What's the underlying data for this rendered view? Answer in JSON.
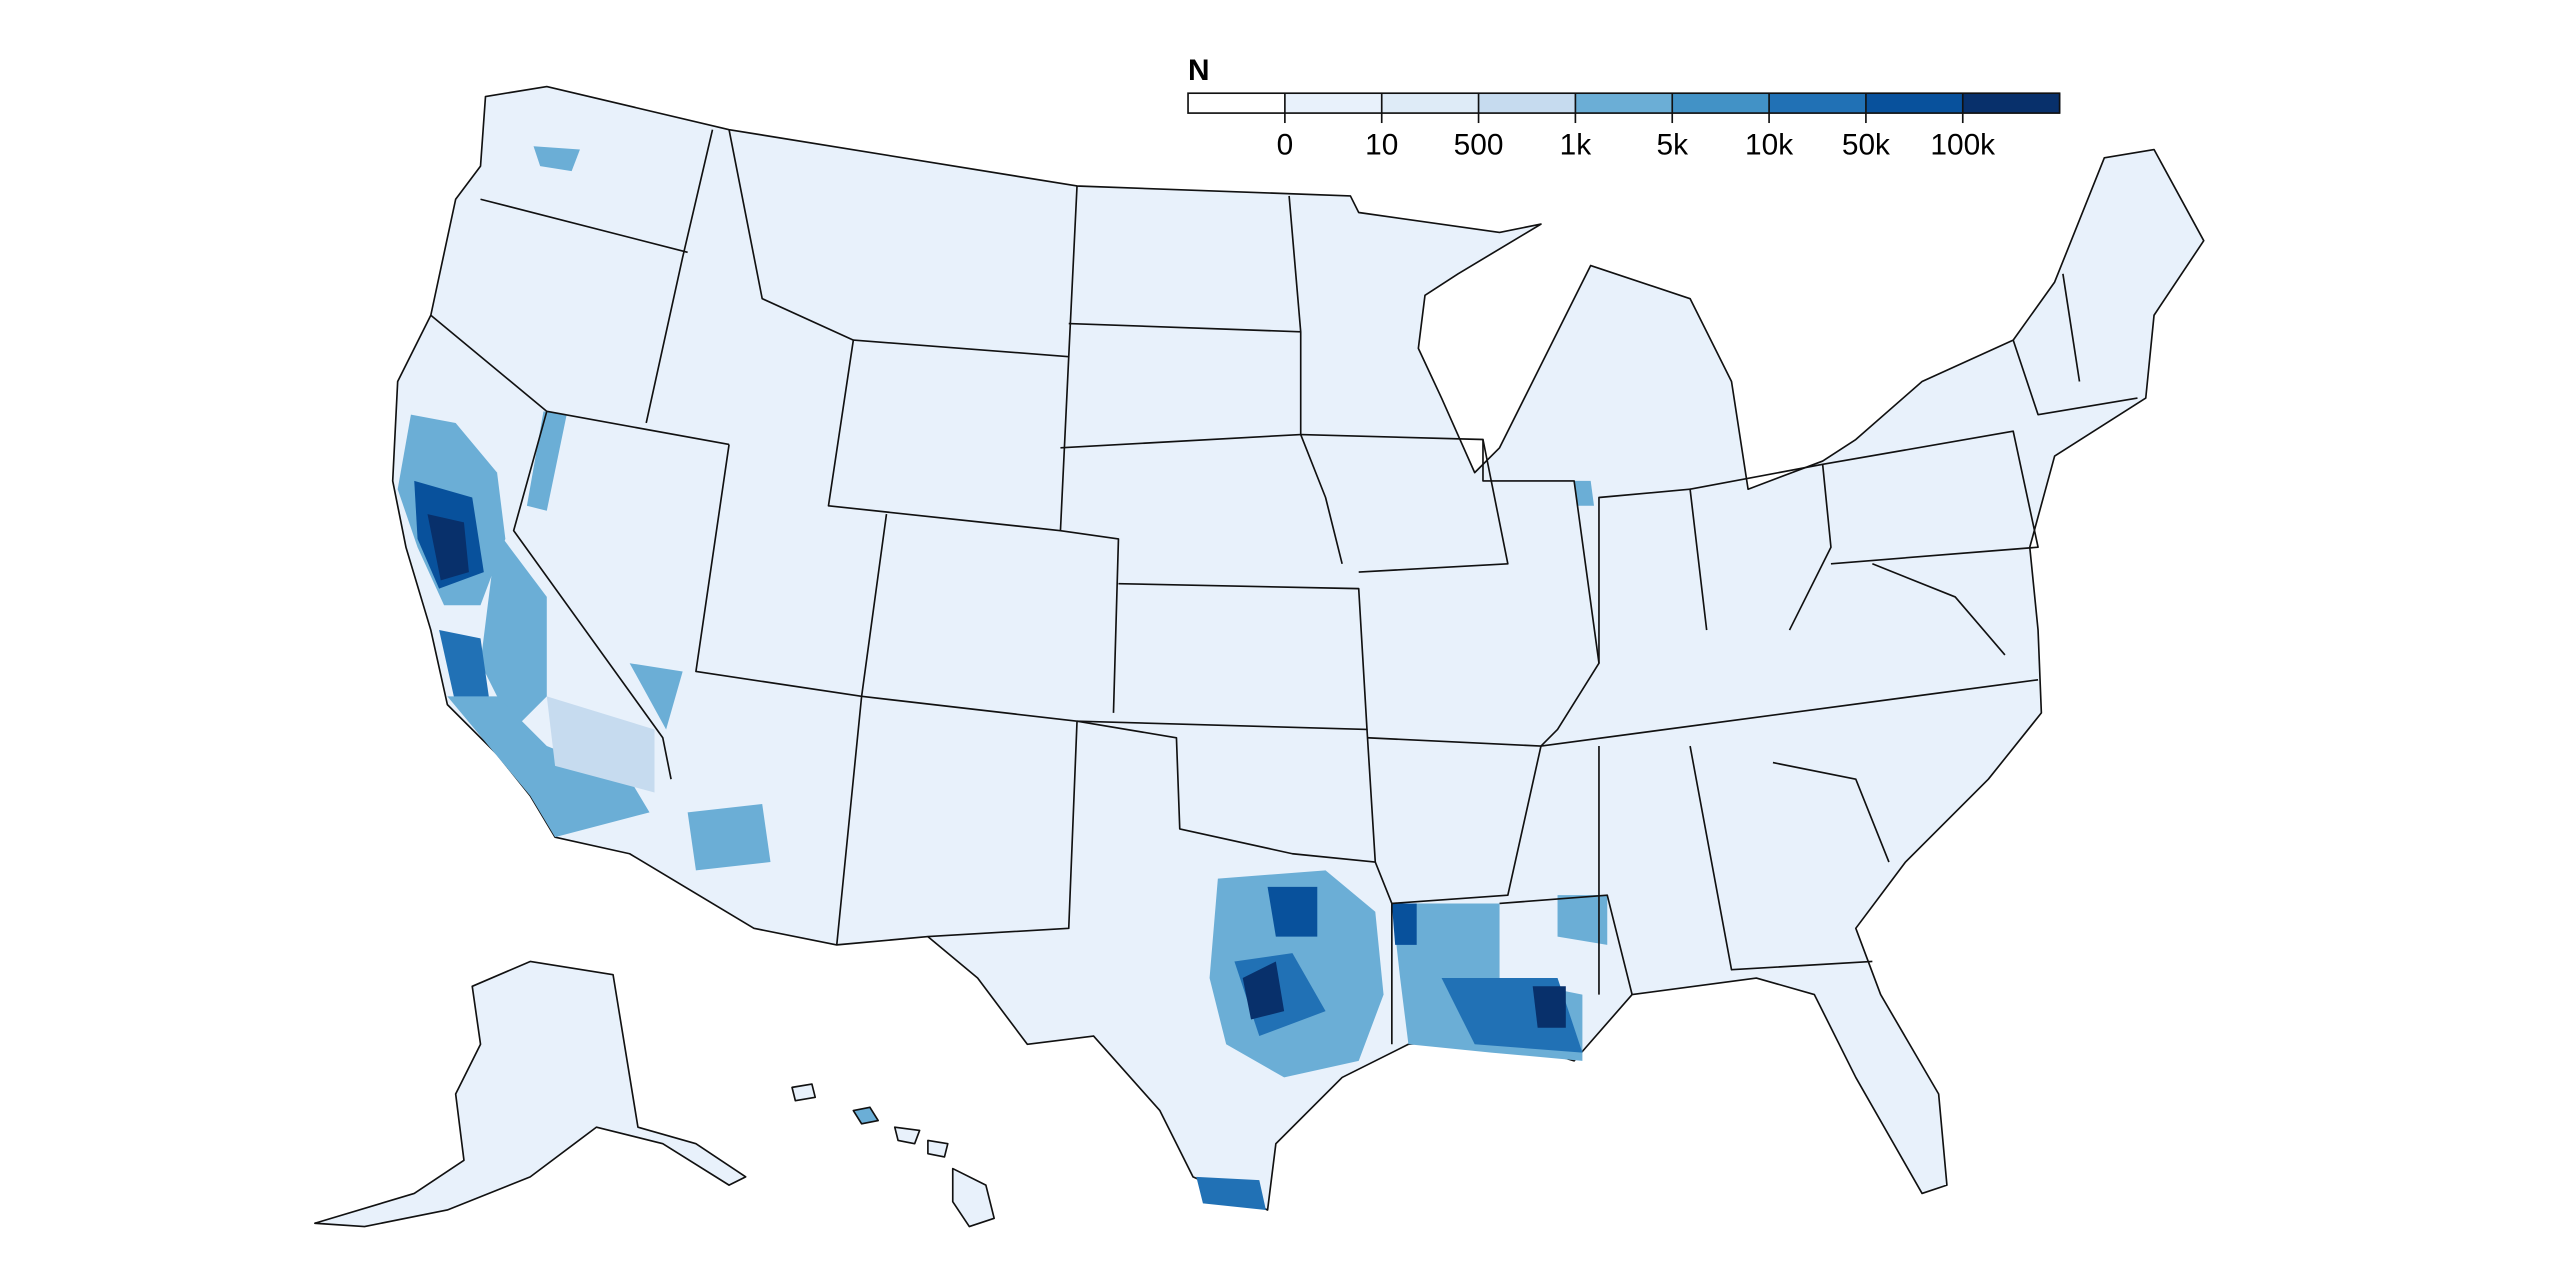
{
  "legend": {
    "title": "N",
    "labels": [
      "0",
      "10",
      "500",
      "1k",
      "5k",
      "10k",
      "50k",
      "100k"
    ],
    "colors": [
      "#ffffff",
      "#e8f1fb",
      "#deebf7",
      "#c6dbef",
      "#6baed6",
      "#4292c6",
      "#2171b5",
      "#08519c",
      "#08306b"
    ]
  }
}
